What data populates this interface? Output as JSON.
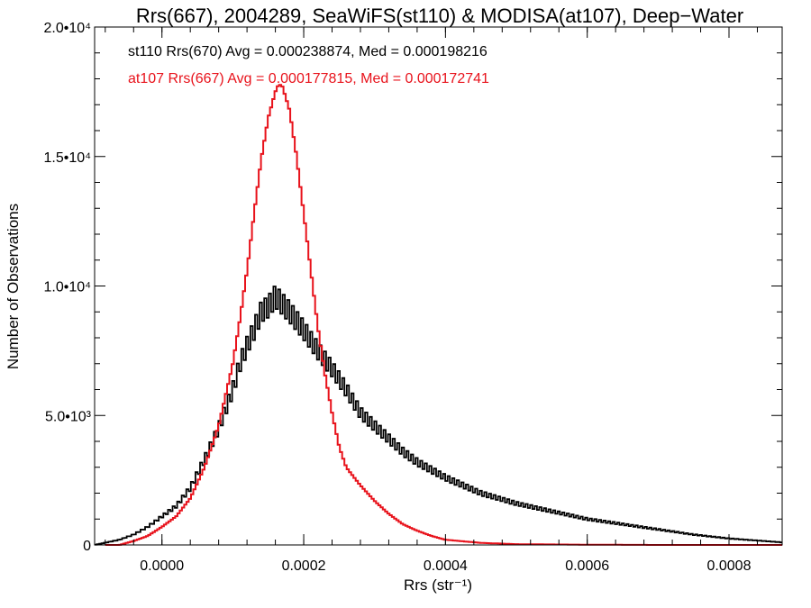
{
  "chart_data": {
    "type": "line",
    "title": "Rrs(667), 2004289, SeaWiFS(st110) & MODISA(at107), Deep−Water",
    "xlabel": "Rrs (str⁻¹)",
    "ylabel": "Number of Observations",
    "xlim": [
      -9.5e-05,
      0.000875
    ],
    "ylim": [
      0,
      20000
    ],
    "x_ticks": [
      0.0,
      0.0002,
      0.0004,
      0.0006,
      0.0008
    ],
    "x_tick_labels": [
      "0.0000",
      "0.0002",
      "0.0004",
      "0.0006",
      "0.0008"
    ],
    "y_ticks": [
      0,
      5000,
      10000,
      15000,
      20000
    ],
    "y_tick_labels": [
      "0",
      "5.0•10³",
      "1.0•10⁴",
      "1.5•10⁴",
      "2.0•10⁴"
    ],
    "grid": false,
    "legend_position": "top-left",
    "series": [
      {
        "name": "st110 Rrs(670)",
        "legend_text": "st110 Rrs(670) Avg = 0.000238874, Med = 0.000198216",
        "color": "#000000",
        "style": "histogram (sawtooth)",
        "x": [
          -9.5e-05,
          -6e-05,
          -4e-05,
          -2e-05,
          0.0,
          2e-05,
          4e-05,
          6e-05,
          8e-05,
          0.0001,
          0.00011,
          0.00012,
          0.00013,
          0.00014,
          0.00015,
          0.00016,
          0.00017,
          0.00018,
          0.0002,
          0.00022,
          0.00024,
          0.00026,
          0.00028,
          0.0003,
          0.00032,
          0.00034,
          0.00036,
          0.00038,
          0.0004,
          0.00045,
          0.0005,
          0.00055,
          0.0006,
          0.00065,
          0.0007,
          0.00075,
          0.0008,
          0.00085,
          0.000875
        ],
        "y": [
          0,
          200,
          400,
          700,
          1100,
          1500,
          2200,
          3300,
          4500,
          6000,
          7000,
          7700,
          8300,
          9000,
          9200,
          9600,
          9300,
          9000,
          8300,
          7500,
          6800,
          6000,
          5100,
          4600,
          4100,
          3600,
          3200,
          2900,
          2600,
          2000,
          1600,
          1300,
          1000,
          800,
          600,
          400,
          250,
          150,
          100
        ]
      },
      {
        "name": "at107 Rrs(667)",
        "legend_text": "at107 Rrs(667) Avg = 0.000177815, Med = 0.000172741",
        "color": "#e8121b",
        "style": "histogram",
        "x": [
          -8e-05,
          -6e-05,
          -4e-05,
          -2e-05,
          0.0,
          2e-05,
          4e-05,
          6e-05,
          8e-05,
          0.0001,
          0.00011,
          0.00012,
          0.00013,
          0.00014,
          0.00015,
          0.00016,
          0.000165,
          0.00017,
          0.00018,
          0.00019,
          0.0002,
          0.00021,
          0.00022,
          0.00023,
          0.00024,
          0.00025,
          0.00026,
          0.00028,
          0.0003,
          0.00032,
          0.00034,
          0.00036,
          0.00038,
          0.0004,
          0.00045,
          0.0005,
          0.0006,
          0.0007,
          0.0008,
          0.000875
        ],
        "y": [
          0,
          0,
          150,
          350,
          700,
          1100,
          1800,
          3000,
          4600,
          7000,
          8700,
          10600,
          12800,
          14900,
          16500,
          17500,
          17800,
          17700,
          16800,
          15000,
          12800,
          10600,
          8400,
          6600,
          5100,
          3800,
          3000,
          2300,
          1700,
          1200,
          800,
          550,
          350,
          200,
          80,
          30,
          10,
          0,
          0,
          0
        ]
      }
    ]
  }
}
